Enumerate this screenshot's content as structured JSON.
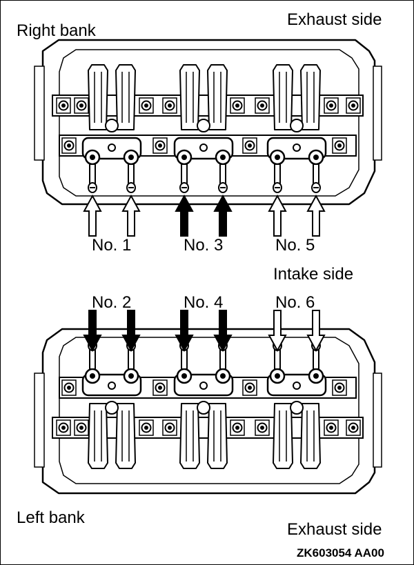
{
  "labels": {
    "top_left": "Right bank",
    "top_right": "Exhaust side",
    "middle": "Intake side",
    "bottom_left": "Left bank",
    "bottom_right": "Exhaust side",
    "figure_code": "ZK603054 AA00"
  },
  "cylinders": {
    "top": [
      "No. 1",
      "No. 3",
      "No. 5"
    ],
    "bottom": [
      "No. 2",
      "No. 4",
      "No. 6"
    ]
  },
  "arrow_styles": {
    "top": [
      "outline",
      "solid",
      "outline"
    ],
    "bottom": [
      "solid",
      "solid",
      "outline"
    ]
  },
  "colors": {
    "line": "#000000",
    "background": "#ffffff"
  }
}
